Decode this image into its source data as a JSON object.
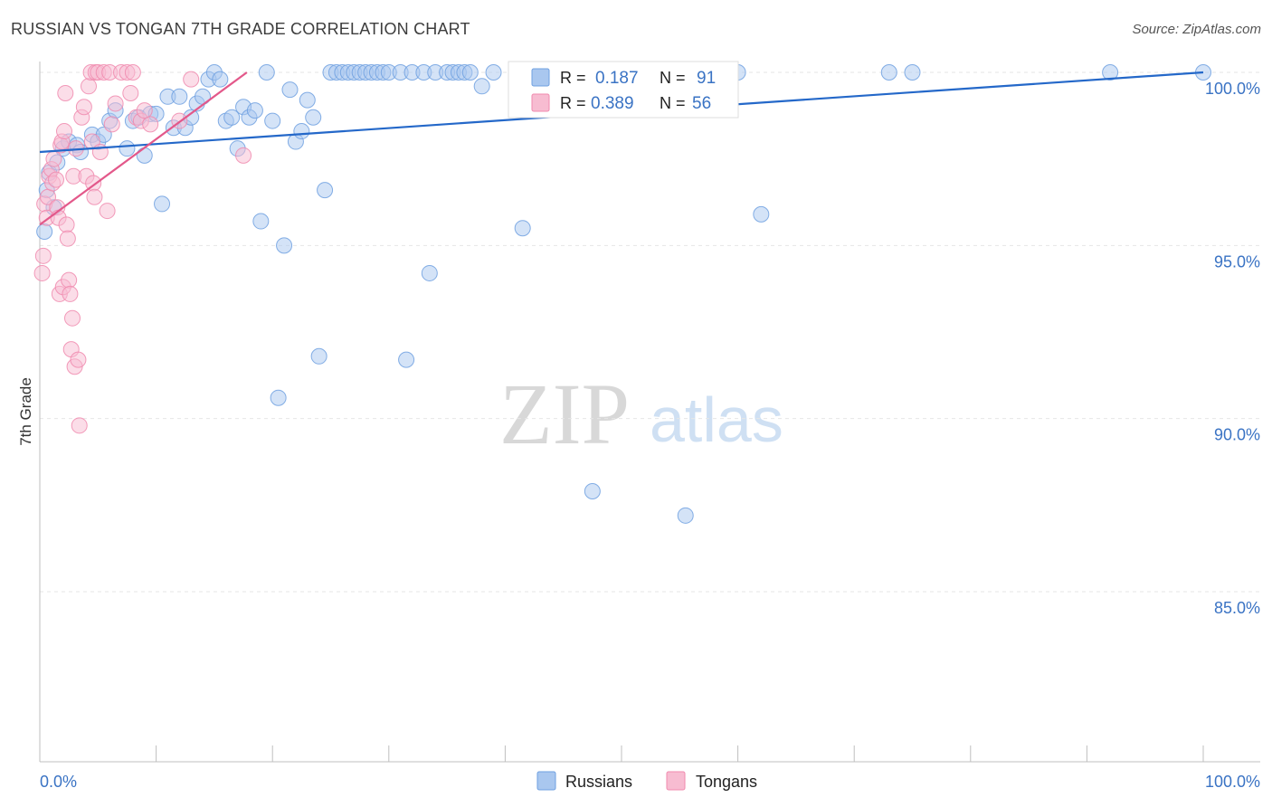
{
  "title": "RUSSIAN VS TONGAN 7TH GRADE CORRELATION CHART",
  "source": "Source: ZipAtlas.com",
  "colors": {
    "russians": "#6fa0e0",
    "russians_fill": "#a9c7ef",
    "russians_line": "#2468c9",
    "tongans": "#f08aae",
    "tongans_fill": "#f7bcd1",
    "tongans_line": "#e3588a",
    "tick": "#3a73c4"
  },
  "chart_data": {
    "type": "scatter",
    "title": "RUSSIAN VS TONGAN 7TH GRADE CORRELATION CHART",
    "xlabel": "",
    "ylabel": "7th Grade",
    "xlim": [
      0,
      100
    ],
    "ylim": [
      80,
      100.4
    ],
    "x_tick_labels": [
      "0.0%",
      "100.0%"
    ],
    "y_ticks": [
      {
        "value": 100,
        "label": "100.0%"
      },
      {
        "value": 95,
        "label": "95.0%"
      },
      {
        "value": 90,
        "label": "90.0%"
      },
      {
        "value": 85,
        "label": "85.0%"
      }
    ],
    "grid": true,
    "legend": [
      {
        "series": "Russians",
        "r_label": "R =",
        "r_value": "0.187",
        "n_label": "N =",
        "n_value": "91"
      },
      {
        "series": "Tongans",
        "r_label": "R =",
        "r_value": "0.389",
        "n_label": "N =",
        "n_value": "56"
      }
    ],
    "series": [
      {
        "name": "Russians",
        "trend": {
          "x": [
            0,
            100
          ],
          "y": [
            97.7,
            100.0
          ]
        },
        "points": [
          [
            0.4,
            95.4
          ],
          [
            0.6,
            96.6
          ],
          [
            0.8,
            97.1
          ],
          [
            1.2,
            96.1
          ],
          [
            1.5,
            97.4
          ],
          [
            2.0,
            97.8
          ],
          [
            2.5,
            98.0
          ],
          [
            3.2,
            97.9
          ],
          [
            3.5,
            97.7
          ],
          [
            4.5,
            98.2
          ],
          [
            5.0,
            98.0
          ],
          [
            5.5,
            98.2
          ],
          [
            6.0,
            98.6
          ],
          [
            6.5,
            98.9
          ],
          [
            7.5,
            97.8
          ],
          [
            8.0,
            98.6
          ],
          [
            8.5,
            98.7
          ],
          [
            9.0,
            97.6
          ],
          [
            9.5,
            98.8
          ],
          [
            10.0,
            98.8
          ],
          [
            10.5,
            96.2
          ],
          [
            11.0,
            99.3
          ],
          [
            11.5,
            98.4
          ],
          [
            12.0,
            99.3
          ],
          [
            12.5,
            98.4
          ],
          [
            13.0,
            98.7
          ],
          [
            13.5,
            99.1
          ],
          [
            14.0,
            99.3
          ],
          [
            14.5,
            99.8
          ],
          [
            15.0,
            100.0
          ],
          [
            15.5,
            99.8
          ],
          [
            16.0,
            98.6
          ],
          [
            16.5,
            98.7
          ],
          [
            17.0,
            97.8
          ],
          [
            17.5,
            99.0
          ],
          [
            18.0,
            98.7
          ],
          [
            18.5,
            98.9
          ],
          [
            19.0,
            95.7
          ],
          [
            19.5,
            100.0
          ],
          [
            20.0,
            98.6
          ],
          [
            20.5,
            90.6
          ],
          [
            21.0,
            95.0
          ],
          [
            21.5,
            99.5
          ],
          [
            22.0,
            98.0
          ],
          [
            22.5,
            98.3
          ],
          [
            23.0,
            99.2
          ],
          [
            23.5,
            98.7
          ],
          [
            24.0,
            91.8
          ],
          [
            24.5,
            96.6
          ],
          [
            25.0,
            100.0
          ],
          [
            25.5,
            100.0
          ],
          [
            26.0,
            100.0
          ],
          [
            26.5,
            100.0
          ],
          [
            27.0,
            100.0
          ],
          [
            27.5,
            100.0
          ],
          [
            28.0,
            100.0
          ],
          [
            28.5,
            100.0
          ],
          [
            29.0,
            100.0
          ],
          [
            29.5,
            100.0
          ],
          [
            30.0,
            100.0
          ],
          [
            31.0,
            100.0
          ],
          [
            31.5,
            91.7
          ],
          [
            32.0,
            100.0
          ],
          [
            33.0,
            100.0
          ],
          [
            33.5,
            94.2
          ],
          [
            34.0,
            100.0
          ],
          [
            35.0,
            100.0
          ],
          [
            35.5,
            100.0
          ],
          [
            36.0,
            100.0
          ],
          [
            36.5,
            100.0
          ],
          [
            37.0,
            100.0
          ],
          [
            38.0,
            99.6
          ],
          [
            39.0,
            100.0
          ],
          [
            41.5,
            95.5
          ],
          [
            42.0,
            100.0
          ],
          [
            43.0,
            100.0
          ],
          [
            44.0,
            100.0
          ],
          [
            45.5,
            100.0
          ],
          [
            46.0,
            100.0
          ],
          [
            47.5,
            87.9
          ],
          [
            48.0,
            100.0
          ],
          [
            49.5,
            100.0
          ],
          [
            52.0,
            100.0
          ],
          [
            54.0,
            100.0
          ],
          [
            55.5,
            87.2
          ],
          [
            57.0,
            100.0
          ],
          [
            60.0,
            100.0
          ],
          [
            62.0,
            95.9
          ],
          [
            73.0,
            100.0
          ],
          [
            75.0,
            100.0
          ],
          [
            92.0,
            100.0
          ],
          [
            100.0,
            100.0
          ]
        ]
      },
      {
        "name": "Tongans",
        "trend": {
          "x": [
            0,
            17.8
          ],
          "y": [
            95.6,
            100.0
          ]
        },
        "points": [
          [
            0.2,
            94.2
          ],
          [
            0.3,
            94.7
          ],
          [
            0.4,
            96.2
          ],
          [
            0.6,
            95.8
          ],
          [
            0.7,
            96.4
          ],
          [
            0.8,
            97.0
          ],
          [
            1.0,
            97.2
          ],
          [
            1.1,
            96.8
          ],
          [
            1.2,
            97.5
          ],
          [
            1.4,
            96.9
          ],
          [
            1.5,
            96.1
          ],
          [
            1.6,
            95.8
          ],
          [
            1.7,
            93.6
          ],
          [
            1.8,
            97.9
          ],
          [
            1.9,
            98.0
          ],
          [
            2.0,
            93.8
          ],
          [
            2.1,
            98.3
          ],
          [
            2.2,
            99.4
          ],
          [
            2.3,
            95.6
          ],
          [
            2.4,
            95.2
          ],
          [
            2.5,
            94.0
          ],
          [
            2.6,
            93.6
          ],
          [
            2.7,
            92.0
          ],
          [
            2.8,
            92.9
          ],
          [
            2.9,
            97.0
          ],
          [
            3.0,
            91.5
          ],
          [
            3.1,
            97.8
          ],
          [
            3.3,
            91.7
          ],
          [
            3.4,
            89.8
          ],
          [
            3.6,
            98.7
          ],
          [
            3.8,
            99.0
          ],
          [
            4.0,
            97.0
          ],
          [
            4.2,
            99.6
          ],
          [
            4.4,
            100.0
          ],
          [
            4.5,
            98.0
          ],
          [
            4.6,
            96.8
          ],
          [
            4.7,
            96.4
          ],
          [
            4.8,
            100.0
          ],
          [
            5.0,
            100.0
          ],
          [
            5.2,
            97.7
          ],
          [
            5.5,
            100.0
          ],
          [
            5.8,
            96.0
          ],
          [
            6.0,
            100.0
          ],
          [
            6.2,
            98.5
          ],
          [
            6.5,
            99.1
          ],
          [
            7.0,
            100.0
          ],
          [
            7.5,
            100.0
          ],
          [
            7.8,
            99.4
          ],
          [
            8.0,
            100.0
          ],
          [
            8.3,
            98.7
          ],
          [
            8.7,
            98.6
          ],
          [
            9.0,
            98.9
          ],
          [
            9.5,
            98.5
          ],
          [
            12.0,
            98.6
          ],
          [
            13.0,
            99.8
          ],
          [
            17.5,
            97.6
          ]
        ]
      }
    ]
  },
  "bottom_legend": {
    "russians": "Russians",
    "tongans": "Tongans"
  },
  "watermark": {
    "zip": "ZIP",
    "atlas": "atlas"
  }
}
